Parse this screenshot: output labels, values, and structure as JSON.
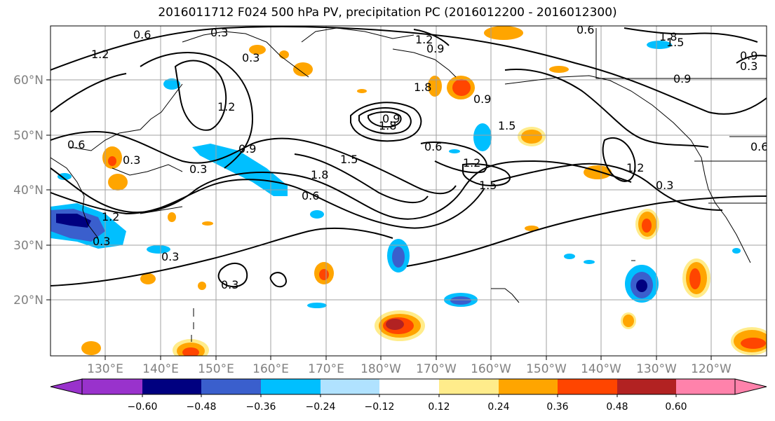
{
  "title": "2016011712 F024 500 hPa PV, precipitation PC (2016012200 - 2016012300)",
  "map": {
    "lon_labels": [
      "130°E",
      "140°E",
      "150°E",
      "160°E",
      "170°E",
      "180°W",
      "170°W",
      "160°W",
      "150°W",
      "140°W",
      "130°W",
      "120°W"
    ],
    "lat_labels": [
      "60°N",
      "50°N",
      "40°N",
      "30°N",
      "20°N"
    ],
    "contour_labels": [
      "1.2",
      "0.6",
      "0.3",
      "0.3",
      "0.9",
      "1.2",
      "0.9",
      "1.2",
      "1.8",
      "0.6",
      "0.3",
      "0.3",
      "0.9",
      "0.6",
      "1.2",
      "1.5",
      "0.9",
      "1.5",
      "1.8",
      "0.6",
      "1.2",
      "0.3",
      "0.3",
      "0.3",
      "1.8",
      "1.5",
      "0.9",
      "0.6",
      "0.3",
      "0.9",
      "0.6",
      "1.2",
      "1.8",
      "1.5",
      "0.3"
    ]
  },
  "colorbar": {
    "ticks": [
      "−0.60",
      "−0.48",
      "−0.36",
      "−0.24",
      "−0.12",
      "0.12",
      "0.24",
      "0.36",
      "0.48",
      "0.60"
    ],
    "colors": {
      "under": "#9932cc",
      "b1": "#000080",
      "b2": "#3a5fcd",
      "b3": "#00bfff",
      "b4": "#b0e2ff",
      "b5": "#ffffff",
      "b6": "#ffec8b",
      "b7": "#ffa500",
      "b8": "#ff4500",
      "b9": "#b22222",
      "over": "#ff82ab"
    }
  }
}
